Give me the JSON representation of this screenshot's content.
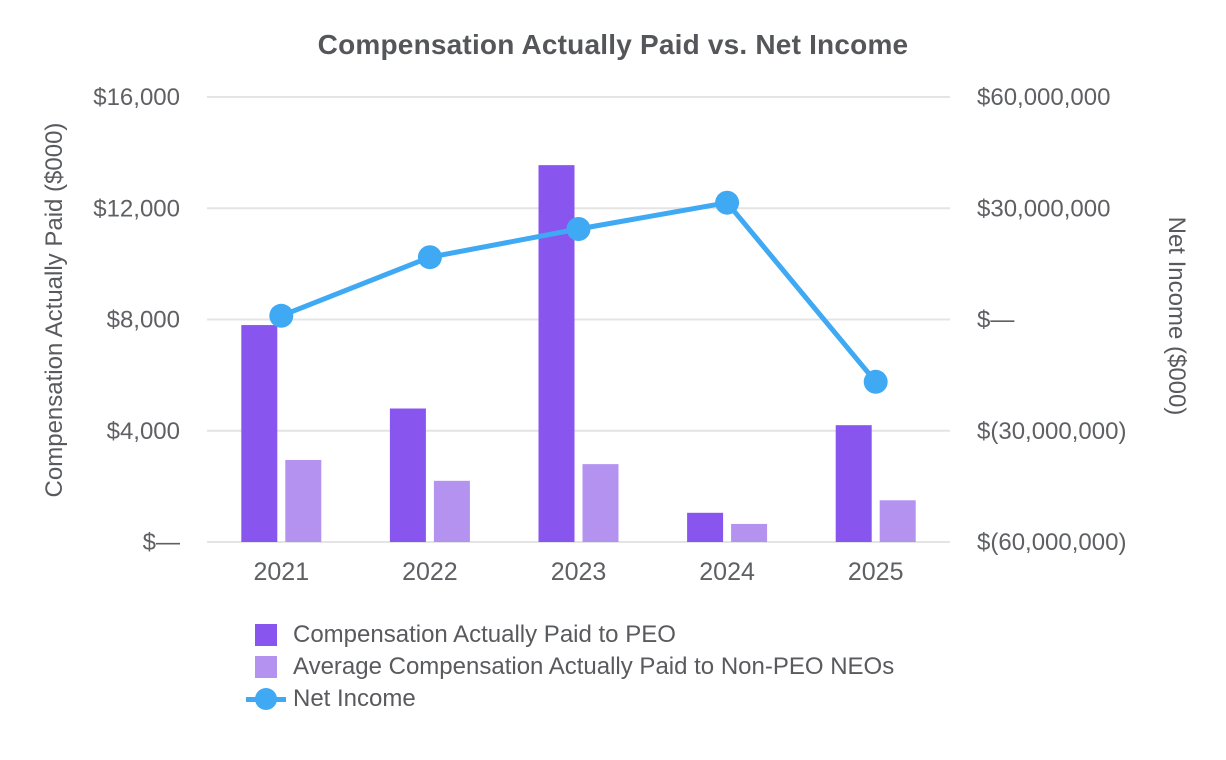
{
  "title": "Compensation Actually Paid vs. Net Income",
  "colors": {
    "peo_bar": "#8955EF",
    "non_peo_bar": "#B392F0",
    "net_income_line": "#3FA9F4",
    "gridline": "#E4E4E4",
    "title_text": "#545659",
    "axis_text": "#5E6063"
  },
  "left_axis": {
    "title": "Compensation Actually Paid ($000)",
    "ticks": [
      "$16,000",
      "$12,000",
      "$8,000",
      "$4,000",
      "$—"
    ],
    "min": 0,
    "max": 16000
  },
  "right_axis": {
    "title": "Net Income ($000)",
    "ticks": [
      "$60,000,000",
      "$30,000,000",
      "$—",
      "$(30,000,000)",
      "$(60,000,000)"
    ],
    "min": -60000000,
    "max": 60000000
  },
  "chart_data": {
    "type": "combo",
    "title": "Compensation Actually Paid vs. Net Income",
    "categories": [
      "2021",
      "2022",
      "2023",
      "2024",
      "2025"
    ],
    "series": [
      {
        "name": "Compensation Actually Paid to PEO",
        "type": "bar",
        "axis": "left",
        "color": "#8955EF",
        "values": [
          7800,
          4800,
          13550,
          1050,
          4200
        ]
      },
      {
        "name": "Average Compensation Actually Paid to Non-PEO NEOs",
        "type": "bar",
        "axis": "left",
        "color": "#B392F0",
        "values": [
          2950,
          2200,
          2800,
          650,
          1500
        ]
      },
      {
        "name": "Net Income",
        "type": "line",
        "axis": "right",
        "color": "#3FA9F4",
        "values": [
          1000000,
          16800000,
          24400000,
          31500000,
          -16800000
        ]
      }
    ],
    "left_ylim": [
      0,
      16000
    ],
    "right_ylim": [
      -60000000,
      60000000
    ],
    "grid": true,
    "legend_position": "bottom-left"
  }
}
